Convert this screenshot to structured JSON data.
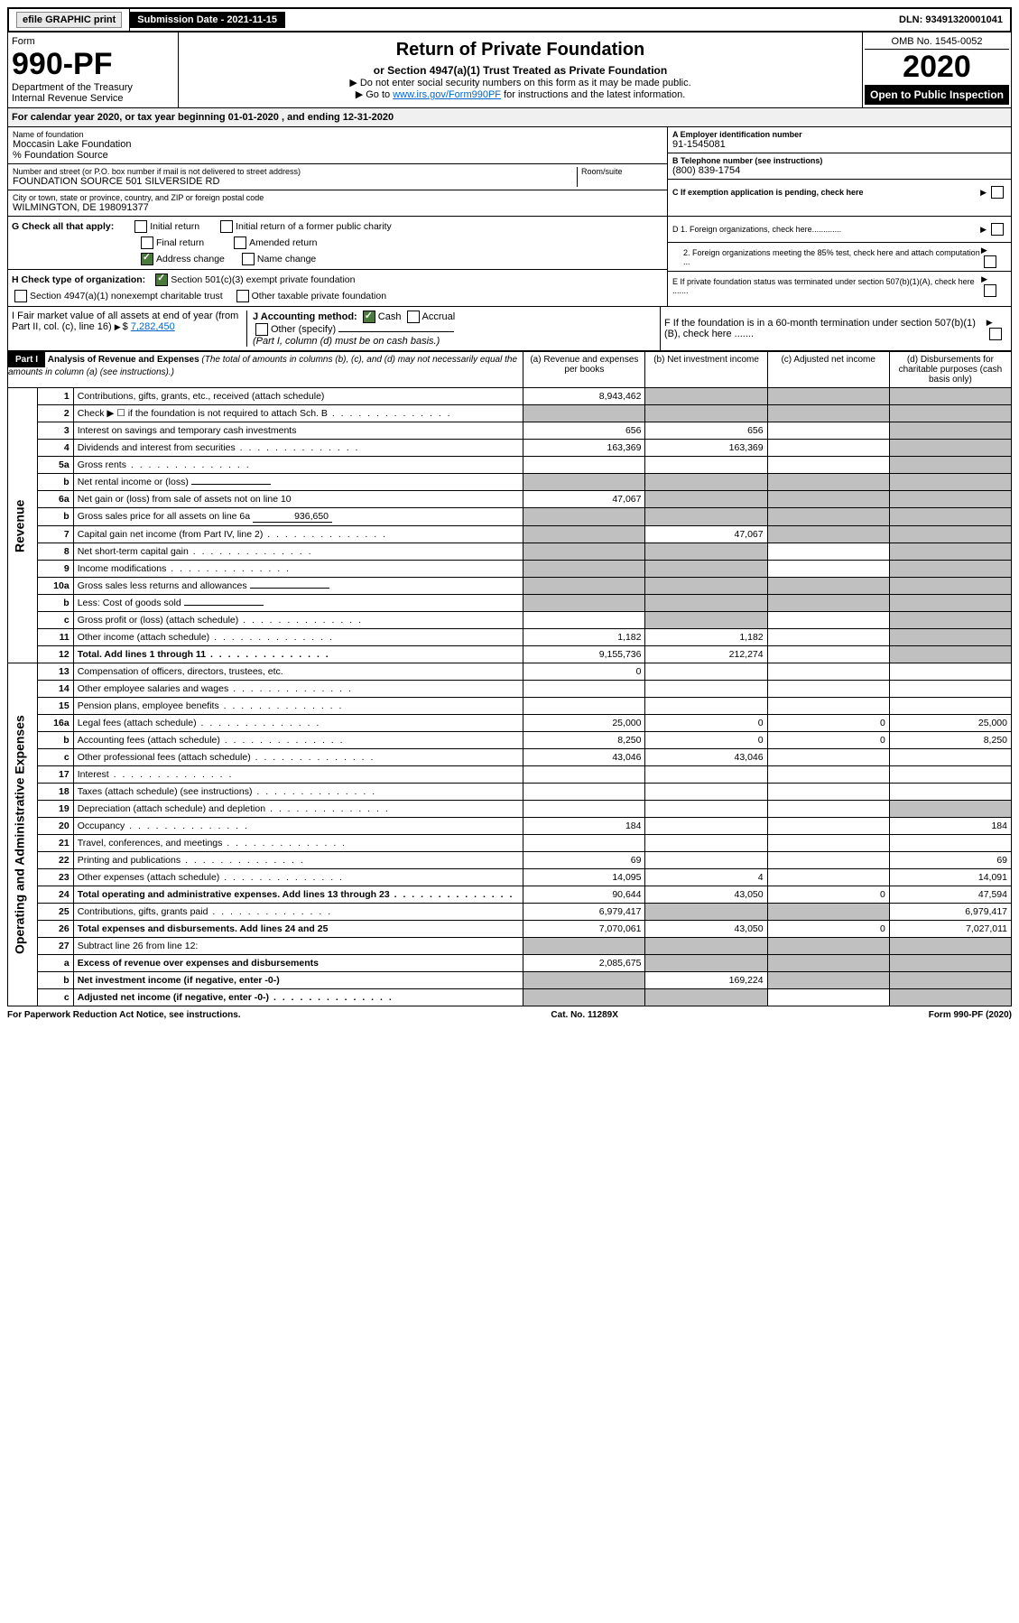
{
  "topbar": {
    "efile_label": "efile GRAPHIC print",
    "submission_label": "Submission Date - 2021-11-15",
    "dln": "DLN: 93491320001041"
  },
  "header": {
    "form_label": "Form",
    "form_number": "990-PF",
    "dept": "Department of the Treasury",
    "irs": "Internal Revenue Service",
    "title": "Return of Private Foundation",
    "subtitle": "or Section 4947(a)(1) Trust Treated as Private Foundation",
    "inst1": "▶ Do not enter social security numbers on this form as it may be made public.",
    "inst2_pre": "▶ Go to ",
    "inst2_link": "www.irs.gov/Form990PF",
    "inst2_post": " for instructions and the latest information.",
    "omb": "OMB No. 1545-0052",
    "year": "2020",
    "open": "Open to Public Inspection"
  },
  "cal_year": "For calendar year 2020, or tax year beginning 01-01-2020              , and ending 12-31-2020",
  "foundation": {
    "name_lbl": "Name of foundation",
    "name": "Moccasin Lake Foundation",
    "care": "% Foundation Source",
    "addr_lbl": "Number and street (or P.O. box number if mail is not delivered to street address)",
    "addr": "FOUNDATION SOURCE 501 SILVERSIDE RD",
    "room_lbl": "Room/suite",
    "city_lbl": "City or town, state or province, country, and ZIP or foreign postal code",
    "city": "WILMINGTON, DE  198091377"
  },
  "right_info": {
    "a_lbl": "A Employer identification number",
    "a_val": "91-1545081",
    "b_lbl": "B Telephone number (see instructions)",
    "b_val": "(800) 839-1754",
    "c_lbl": "C If exemption application is pending, check here",
    "d1_lbl": "D 1. Foreign organizations, check here.............",
    "d2_lbl": "2. Foreign organizations meeting the 85% test, check here and attach computation ...",
    "e_lbl": "E  If private foundation status was terminated under section 507(b)(1)(A), check here .......",
    "f_lbl": "F  If the foundation is in a 60-month termination under section 507(b)(1)(B), check here .......",
    "fmv_lbl": "I Fair market value of all assets at end of year (from Part II, col. (c), line 16)",
    "fmv_val": "7,282,450",
    "j_lbl": "J Accounting method:",
    "j_cash": "Cash",
    "j_accrual": "Accrual",
    "j_other": "Other (specify)",
    "j_note": "(Part I, column (d) must be on cash basis.)"
  },
  "g_check": {
    "label": "G Check all that apply:",
    "initial": "Initial return",
    "initial_former": "Initial return of a former public charity",
    "final": "Final return",
    "amended": "Amended return",
    "address": "Address change",
    "name": "Name change"
  },
  "h_check": {
    "label": "H Check type of organization:",
    "c3": "Section 501(c)(3) exempt private foundation",
    "nonexempt": "Section 4947(a)(1) nonexempt charitable trust",
    "other": "Other taxable private foundation"
  },
  "part1": {
    "label": "Part I",
    "title": "Analysis of Revenue and Expenses",
    "title_note": " (The total of amounts in columns (b), (c), and (d) may not necessarily equal the amounts in column (a) (see instructions).)",
    "col_a": "(a)   Revenue and expenses per books",
    "col_b": "(b)   Net investment income",
    "col_c": "(c)   Adjusted net income",
    "col_d": "(d)   Disbursements for charitable purposes (cash basis only)",
    "revenue_label": "Revenue",
    "expenses_label": "Operating and Administrative Expenses"
  },
  "rows": [
    {
      "n": "1",
      "desc": "Contributions, gifts, grants, etc., received (attach schedule)",
      "a": "8,943,462",
      "b": "",
      "c": "",
      "d": "",
      "shade_b": true,
      "shade_c": true,
      "shade_d": true
    },
    {
      "n": "2",
      "desc": "Check ▶ ☐ if the foundation is not required to attach Sch. B",
      "a": "",
      "b": "",
      "c": "",
      "d": "",
      "shade_a": true,
      "shade_b": true,
      "shade_c": true,
      "shade_d": true,
      "dots": true
    },
    {
      "n": "3",
      "desc": "Interest on savings and temporary cash investments",
      "a": "656",
      "b": "656",
      "c": "",
      "d": "",
      "shade_d": true
    },
    {
      "n": "4",
      "desc": "Dividends and interest from securities",
      "a": "163,369",
      "b": "163,369",
      "c": "",
      "d": "",
      "shade_d": true,
      "dots": true
    },
    {
      "n": "5a",
      "desc": "Gross rents",
      "a": "",
      "b": "",
      "c": "",
      "d": "",
      "shade_d": true,
      "dots": true
    },
    {
      "n": "b",
      "desc": "Net rental income or (loss)",
      "a": "",
      "b": "",
      "c": "",
      "d": "",
      "shade_a": true,
      "shade_b": true,
      "shade_c": true,
      "shade_d": true,
      "inline": true
    },
    {
      "n": "6a",
      "desc": "Net gain or (loss) from sale of assets not on line 10",
      "a": "47,067",
      "b": "",
      "c": "",
      "d": "",
      "shade_b": true,
      "shade_c": true,
      "shade_d": true
    },
    {
      "n": "b",
      "desc": "Gross sales price for all assets on line 6a",
      "a": "",
      "b": "",
      "c": "",
      "d": "",
      "shade_a": true,
      "shade_b": true,
      "shade_c": true,
      "shade_d": true,
      "inline": true,
      "inline_val": "936,650"
    },
    {
      "n": "7",
      "desc": "Capital gain net income (from Part IV, line 2)",
      "a": "",
      "b": "47,067",
      "c": "",
      "d": "",
      "shade_a": true,
      "shade_c": true,
      "shade_d": true,
      "dots": true
    },
    {
      "n": "8",
      "desc": "Net short-term capital gain",
      "a": "",
      "b": "",
      "c": "",
      "d": "",
      "shade_a": true,
      "shade_b": true,
      "shade_d": true,
      "dots": true
    },
    {
      "n": "9",
      "desc": "Income modifications",
      "a": "",
      "b": "",
      "c": "",
      "d": "",
      "shade_a": true,
      "shade_b": true,
      "shade_d": true,
      "dots": true
    },
    {
      "n": "10a",
      "desc": "Gross sales less returns and allowances",
      "a": "",
      "b": "",
      "c": "",
      "d": "",
      "shade_a": true,
      "shade_b": true,
      "shade_c": true,
      "shade_d": true,
      "inline": true
    },
    {
      "n": "b",
      "desc": "Less: Cost of goods sold",
      "a": "",
      "b": "",
      "c": "",
      "d": "",
      "shade_a": true,
      "shade_b": true,
      "shade_c": true,
      "shade_d": true,
      "inline": true,
      "dots": true
    },
    {
      "n": "c",
      "desc": "Gross profit or (loss) (attach schedule)",
      "a": "",
      "b": "",
      "c": "",
      "d": "",
      "shade_b": true,
      "shade_d": true,
      "dots": true
    },
    {
      "n": "11",
      "desc": "Other income (attach schedule)",
      "a": "1,182",
      "b": "1,182",
      "c": "",
      "d": "",
      "shade_d": true,
      "dots": true
    },
    {
      "n": "12",
      "desc": "Total. Add lines 1 through 11",
      "a": "9,155,736",
      "b": "212,274",
      "c": "",
      "d": "",
      "shade_d": true,
      "bold": true,
      "dots": true
    },
    {
      "n": "13",
      "desc": "Compensation of officers, directors, trustees, etc.",
      "a": "0",
      "b": "",
      "c": "",
      "d": ""
    },
    {
      "n": "14",
      "desc": "Other employee salaries and wages",
      "a": "",
      "b": "",
      "c": "",
      "d": "",
      "dots": true
    },
    {
      "n": "15",
      "desc": "Pension plans, employee benefits",
      "a": "",
      "b": "",
      "c": "",
      "d": "",
      "dots": true
    },
    {
      "n": "16a",
      "desc": "Legal fees (attach schedule)",
      "a": "25,000",
      "b": "0",
      "c": "0",
      "d": "25,000",
      "dots": true
    },
    {
      "n": "b",
      "desc": "Accounting fees (attach schedule)",
      "a": "8,250",
      "b": "0",
      "c": "0",
      "d": "8,250",
      "dots": true
    },
    {
      "n": "c",
      "desc": "Other professional fees (attach schedule)",
      "a": "43,046",
      "b": "43,046",
      "c": "",
      "d": "",
      "dots": true
    },
    {
      "n": "17",
      "desc": "Interest",
      "a": "",
      "b": "",
      "c": "",
      "d": "",
      "dots": true
    },
    {
      "n": "18",
      "desc": "Taxes (attach schedule) (see instructions)",
      "a": "",
      "b": "",
      "c": "",
      "d": "",
      "dots": true
    },
    {
      "n": "19",
      "desc": "Depreciation (attach schedule) and depletion",
      "a": "",
      "b": "",
      "c": "",
      "d": "",
      "shade_d": true,
      "dots": true
    },
    {
      "n": "20",
      "desc": "Occupancy",
      "a": "184",
      "b": "",
      "c": "",
      "d": "184",
      "dots": true
    },
    {
      "n": "21",
      "desc": "Travel, conferences, and meetings",
      "a": "",
      "b": "",
      "c": "",
      "d": "",
      "dots": true
    },
    {
      "n": "22",
      "desc": "Printing and publications",
      "a": "69",
      "b": "",
      "c": "",
      "d": "69",
      "dots": true
    },
    {
      "n": "23",
      "desc": "Other expenses (attach schedule)",
      "a": "14,095",
      "b": "4",
      "c": "",
      "d": "14,091",
      "dots": true
    },
    {
      "n": "24",
      "desc": "Total operating and administrative expenses. Add lines 13 through 23",
      "a": "90,644",
      "b": "43,050",
      "c": "0",
      "d": "47,594",
      "bold": true,
      "dots": true
    },
    {
      "n": "25",
      "desc": "Contributions, gifts, grants paid",
      "a": "6,979,417",
      "b": "",
      "c": "",
      "d": "6,979,417",
      "shade_b": true,
      "shade_c": true,
      "dots": true
    },
    {
      "n": "26",
      "desc": "Total expenses and disbursements. Add lines 24 and 25",
      "a": "7,070,061",
      "b": "43,050",
      "c": "0",
      "d": "7,027,011",
      "bold": true
    },
    {
      "n": "27",
      "desc": "Subtract line 26 from line 12:",
      "a": "",
      "b": "",
      "c": "",
      "d": "",
      "shade_a": true,
      "shade_b": true,
      "shade_c": true,
      "shade_d": true
    },
    {
      "n": "a",
      "desc": "Excess of revenue over expenses and disbursements",
      "a": "2,085,675",
      "b": "",
      "c": "",
      "d": "",
      "shade_b": true,
      "shade_c": true,
      "shade_d": true,
      "bold": true
    },
    {
      "n": "b",
      "desc": "Net investment income (if negative, enter -0-)",
      "a": "",
      "b": "169,224",
      "c": "",
      "d": "",
      "shade_a": true,
      "shade_c": true,
      "shade_d": true,
      "bold": true
    },
    {
      "n": "c",
      "desc": "Adjusted net income (if negative, enter -0-)",
      "a": "",
      "b": "",
      "c": "",
      "d": "",
      "shade_a": true,
      "shade_b": true,
      "shade_d": true,
      "bold": true,
      "dots": true
    }
  ],
  "footer": {
    "left": "For Paperwork Reduction Act Notice, see instructions.",
    "center": "Cat. No. 11289X",
    "right": "Form 990-PF (2020)"
  }
}
